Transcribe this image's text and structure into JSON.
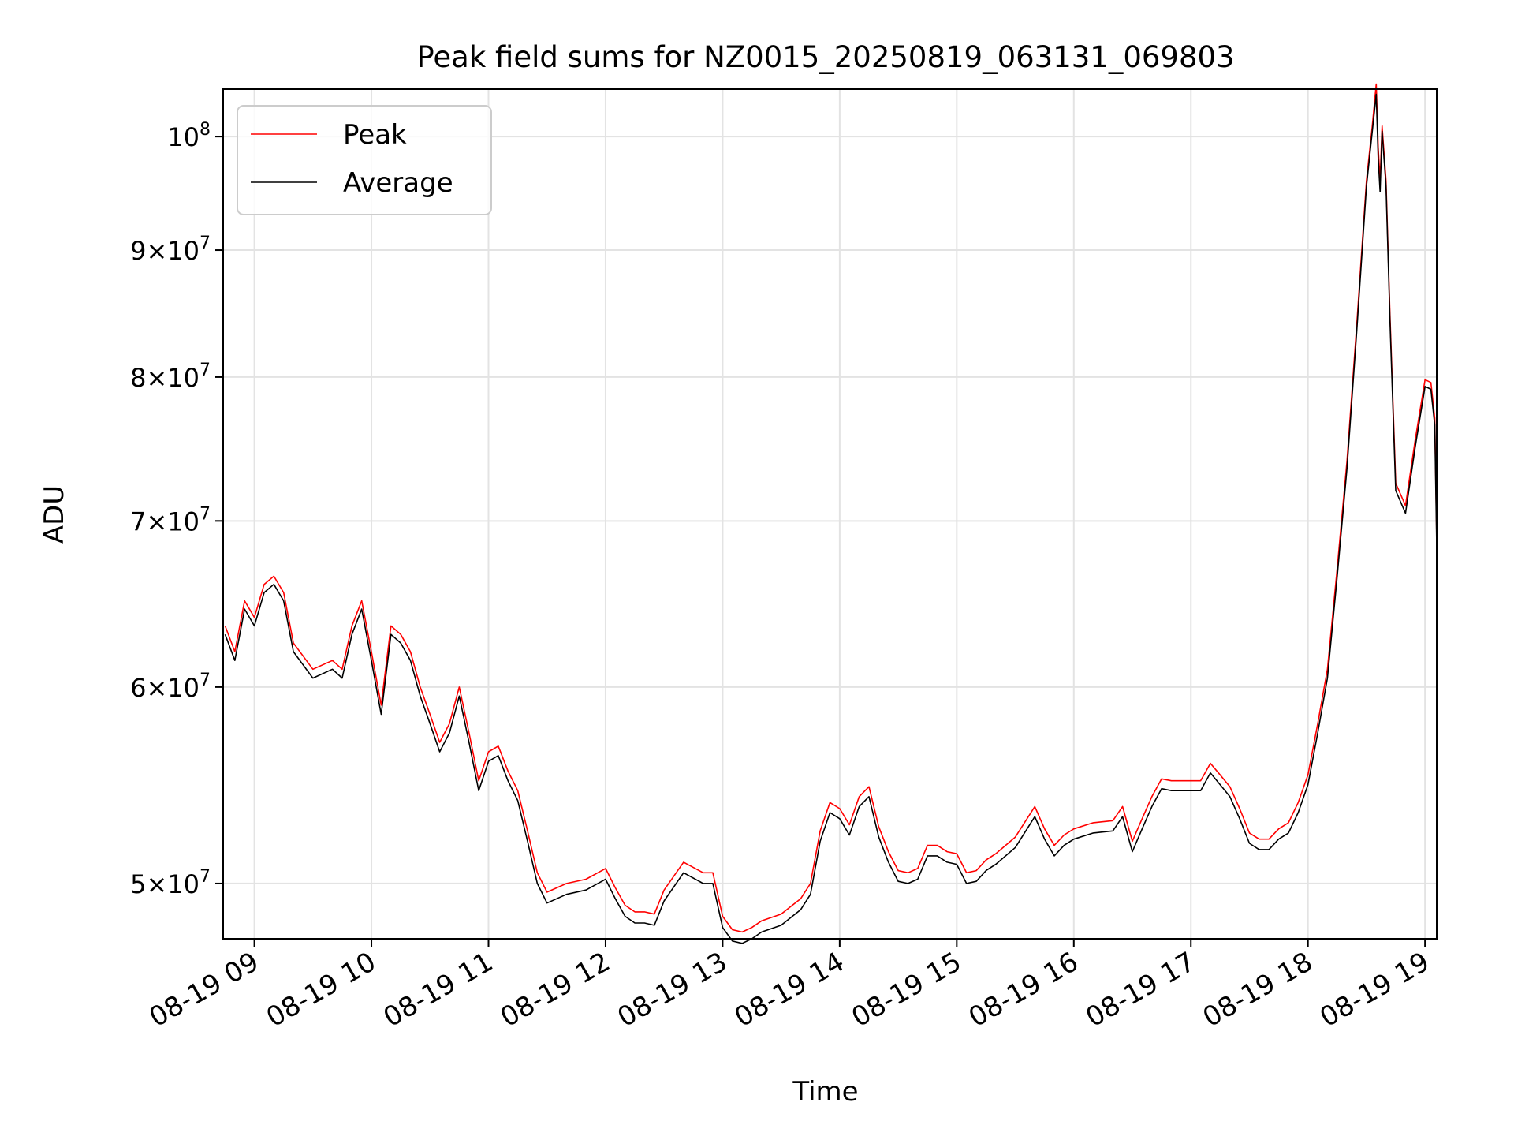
{
  "chart_data": {
    "type": "line",
    "title": "Peak field sums for NZ0015_20250819_063131_069803",
    "xlabel": "Time",
    "ylabel": "ADU",
    "yscale": "log",
    "xlim": [
      "08-19 08:44",
      "08-19 19:06"
    ],
    "ylim": [
      47500000,
      104500000
    ],
    "x_tick_labels": [
      "08-19 09",
      "08-19 10",
      "08-19 11",
      "08-19 12",
      "08-19 13",
      "08-19 14",
      "08-19 15",
      "08-19 16",
      "08-19 17",
      "08-19 18",
      "08-19 19"
    ],
    "y_ticks": [
      {
        "value": 50000000,
        "mantissa": "5",
        "base": "10",
        "exp": "7"
      },
      {
        "value": 60000000,
        "mantissa": "6",
        "base": "10",
        "exp": "7"
      },
      {
        "value": 70000000,
        "mantissa": "7",
        "base": "10",
        "exp": "7"
      },
      {
        "value": 80000000,
        "mantissa": "8",
        "base": "10",
        "exp": "7"
      },
      {
        "value": 90000000,
        "mantissa": "9",
        "base": "10",
        "exp": "7"
      },
      {
        "value": 100000000,
        "mantissa": "",
        "base": "10",
        "exp": "8"
      }
    ],
    "grid": true,
    "legend_position": "top-left",
    "x": [
      "08-19 08:45",
      "08-19 08:50",
      "08-19 08:55",
      "08-19 09:00",
      "08-19 09:05",
      "08-19 09:10",
      "08-19 09:15",
      "08-19 09:20",
      "08-19 09:30",
      "08-19 09:40",
      "08-19 09:45",
      "08-19 09:50",
      "08-19 09:55",
      "08-19 10:00",
      "08-19 10:05",
      "08-19 10:10",
      "08-19 10:15",
      "08-19 10:20",
      "08-19 10:25",
      "08-19 10:30",
      "08-19 10:35",
      "08-19 10:40",
      "08-19 10:45",
      "08-19 10:50",
      "08-19 10:55",
      "08-19 11:00",
      "08-19 11:05",
      "08-19 11:10",
      "08-19 11:15",
      "08-19 11:20",
      "08-19 11:25",
      "08-19 11:30",
      "08-19 11:35",
      "08-19 11:40",
      "08-19 11:50",
      "08-19 12:00",
      "08-19 12:05",
      "08-19 12:10",
      "08-19 12:15",
      "08-19 12:20",
      "08-19 12:25",
      "08-19 12:30",
      "08-19 12:40",
      "08-19 12:50",
      "08-19 12:55",
      "08-19 13:00",
      "08-19 13:05",
      "08-19 13:10",
      "08-19 13:15",
      "08-19 13:20",
      "08-19 13:30",
      "08-19 13:40",
      "08-19 13:45",
      "08-19 13:50",
      "08-19 13:55",
      "08-19 14:00",
      "08-19 14:05",
      "08-19 14:10",
      "08-19 14:15",
      "08-19 14:20",
      "08-19 14:25",
      "08-19 14:30",
      "08-19 14:35",
      "08-19 14:40",
      "08-19 14:45",
      "08-19 14:50",
      "08-19 14:55",
      "08-19 15:00",
      "08-19 15:05",
      "08-19 15:10",
      "08-19 15:15",
      "08-19 15:20",
      "08-19 15:30",
      "08-19 15:40",
      "08-19 15:45",
      "08-19 15:50",
      "08-19 15:55",
      "08-19 16:00",
      "08-19 16:10",
      "08-19 16:20",
      "08-19 16:25",
      "08-19 16:30",
      "08-19 16:35",
      "08-19 16:40",
      "08-19 16:45",
      "08-19 16:50",
      "08-19 17:00",
      "08-19 17:05",
      "08-19 17:10",
      "08-19 17:15",
      "08-19 17:20",
      "08-19 17:25",
      "08-19 17:30",
      "08-19 17:35",
      "08-19 17:40",
      "08-19 17:45",
      "08-19 17:50",
      "08-19 17:55",
      "08-19 18:00",
      "08-19 18:05",
      "08-19 18:10",
      "08-19 18:15",
      "08-19 18:20",
      "08-19 18:25",
      "08-19 18:30",
      "08-19 18:33",
      "08-19 18:35",
      "08-19 18:36",
      "08-19 18:37",
      "08-19 18:38",
      "08-19 18:40",
      "08-19 18:42",
      "08-19 18:45",
      "08-19 18:50",
      "08-19 18:55",
      "08-19 19:00",
      "08-19 19:03",
      "08-19 19:05",
      "08-19 19:06"
    ],
    "series": [
      {
        "name": "Peak",
        "color": "#ff0000",
        "values": [
          63500000,
          62000000,
          65000000,
          64000000,
          66000000,
          66500000,
          65500000,
          62500000,
          61000000,
          61500000,
          61000000,
          63500000,
          65000000,
          62000000,
          59000000,
          63500000,
          63000000,
          62000000,
          60000000,
          58500000,
          57000000,
          58000000,
          60000000,
          57500000,
          55000000,
          56500000,
          56800000,
          55500000,
          54500000,
          52500000,
          50500000,
          49600000,
          49800000,
          50000000,
          50200000,
          50700000,
          49800000,
          49000000,
          48700000,
          48700000,
          48600000,
          49700000,
          51000000,
          50500000,
          50500000,
          48500000,
          47900000,
          47800000,
          48000000,
          48300000,
          48600000,
          49300000,
          50000000,
          52500000,
          53900000,
          53600000,
          52800000,
          54200000,
          54700000,
          52700000,
          51500000,
          50600000,
          50500000,
          50700000,
          51800000,
          51800000,
          51500000,
          51400000,
          50500000,
          50600000,
          51100000,
          51400000,
          52200000,
          53700000,
          52600000,
          51800000,
          52300000,
          52600000,
          52900000,
          53000000,
          53700000,
          52000000,
          53100000,
          54200000,
          55100000,
          55000000,
          55000000,
          55000000,
          55900000,
          55300000,
          54700000,
          53600000,
          52400000,
          52100000,
          52100000,
          52600000,
          52900000,
          53900000,
          55300000,
          58000000,
          61000000,
          67000000,
          74000000,
          84000000,
          96000000,
          101000000,
          105000000,
          99000000,
          96000000,
          101000000,
          96000000,
          85000000,
          72500000,
          71000000,
          75500000,
          79800000,
          79600000,
          77000000,
          68800000
        ]
      },
      {
        "name": "Average",
        "color": "#000000",
        "values": [
          63000000,
          61500000,
          64500000,
          63500000,
          65500000,
          66000000,
          65000000,
          62000000,
          60500000,
          61000000,
          60500000,
          63000000,
          64500000,
          61500000,
          58500000,
          63000000,
          62500000,
          61500000,
          59500000,
          58000000,
          56500000,
          57500000,
          59500000,
          57000000,
          54500000,
          56000000,
          56300000,
          55000000,
          54000000,
          52000000,
          50000000,
          49100000,
          49300000,
          49500000,
          49700000,
          50200000,
          49300000,
          48500000,
          48200000,
          48200000,
          48100000,
          49200000,
          50500000,
          50000000,
          50000000,
          48000000,
          47400000,
          47300000,
          47500000,
          47800000,
          48100000,
          48800000,
          49500000,
          52000000,
          53400000,
          53100000,
          52300000,
          53700000,
          54200000,
          52200000,
          51000000,
          50100000,
          50000000,
          50200000,
          51300000,
          51300000,
          51000000,
          50900000,
          50000000,
          50100000,
          50600000,
          50900000,
          51700000,
          53200000,
          52100000,
          51300000,
          51800000,
          52100000,
          52400000,
          52500000,
          53200000,
          51500000,
          52600000,
          53700000,
          54600000,
          54500000,
          54500000,
          54500000,
          55400000,
          54800000,
          54200000,
          53100000,
          51900000,
          51600000,
          51600000,
          52100000,
          52400000,
          53400000,
          54800000,
          57500000,
          60500000,
          66500000,
          73500000,
          83500000,
          95500000,
          100500000,
          104000000,
          98000000,
          95000000,
          100500000,
          95500000,
          84500000,
          72000000,
          70500000,
          75000000,
          79300000,
          79100000,
          76500000,
          68300000
        ]
      }
    ]
  }
}
